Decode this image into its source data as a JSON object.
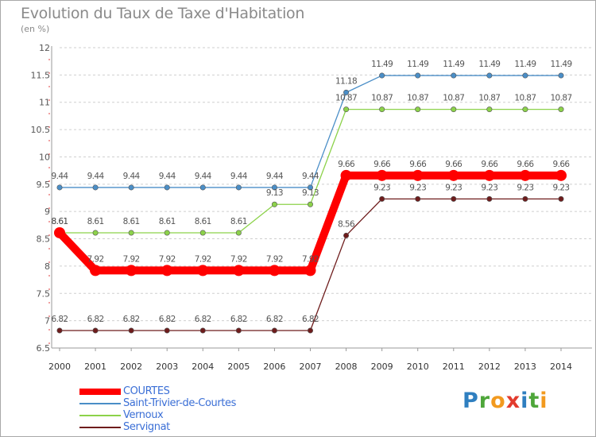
{
  "title": "Evolution du Taux de Taxe d'Habitation",
  "unit_label": "(en %)",
  "logo": {
    "letters": [
      {
        "ch": "P",
        "color": "#2f7fc0"
      },
      {
        "ch": "r",
        "color": "#4ea63a"
      },
      {
        "ch": "o",
        "color": "#f29a1f"
      },
      {
        "ch": "x",
        "color": "#e23b2e"
      },
      {
        "ch": "i",
        "color": "#2f7fc0"
      },
      {
        "ch": "t",
        "color": "#4ea63a"
      },
      {
        "ch": "i",
        "color": "#f29a1f"
      }
    ]
  },
  "chart_data": {
    "type": "line",
    "title": "Evolution du Taux de Taxe d'Habitation",
    "ylabel": "(en %)",
    "ylim": [
      6.5,
      12
    ],
    "yticks": [
      "6.5",
      "7",
      "7.5",
      "8",
      "8.5",
      "9",
      "9.5",
      "10",
      "10.5",
      "11",
      "11.5",
      "12"
    ],
    "grid": "horizontal dashed",
    "legend_position": "bottom-left",
    "x": [
      "2000",
      "2001",
      "2002",
      "2003",
      "2004",
      "2005",
      "2006",
      "2007",
      "2008",
      "2009",
      "2010",
      "2011",
      "2012",
      "2013",
      "2014"
    ],
    "series": [
      {
        "name": "COURTES",
        "color": "#ff0000",
        "values": [
          8.61,
          7.92,
          7.92,
          7.92,
          7.92,
          7.92,
          7.92,
          7.92,
          9.66,
          9.66,
          9.66,
          9.66,
          9.66,
          9.66,
          9.66
        ],
        "labels": [
          "8.61",
          "7.92",
          "7.92",
          "7.92",
          "7.92",
          "7.92",
          "7.92",
          "7.92",
          "9.66",
          "9.66",
          "9.66",
          "9.66",
          "9.66",
          "9.66",
          "9.66"
        ]
      },
      {
        "name": "Saint-Trivier-de-Courtes",
        "color": "#4a8ec7",
        "values": [
          9.44,
          9.44,
          9.44,
          9.44,
          9.44,
          9.44,
          9.44,
          9.44,
          11.18,
          11.49,
          11.49,
          11.49,
          11.49,
          11.49,
          11.49
        ],
        "labels": [
          "9.44",
          "9.44",
          "9.44",
          "9.44",
          "9.44",
          "9.44",
          "9.44",
          "9.44",
          "11.18",
          "11.49",
          "11.49",
          "11.49",
          "11.49",
          "11.49",
          "11.49"
        ]
      },
      {
        "name": "Vernoux",
        "color": "#8cd24a",
        "values": [
          8.61,
          8.61,
          8.61,
          8.61,
          8.61,
          8.61,
          9.13,
          9.13,
          10.87,
          10.87,
          10.87,
          10.87,
          10.87,
          10.87,
          10.87
        ],
        "labels": [
          "8.61",
          "8.61",
          "8.61",
          "8.61",
          "8.61",
          "8.61",
          "9.13",
          "9.13",
          "10.87",
          "10.87",
          "10.87",
          "10.87",
          "10.87",
          "10.87",
          "10.87"
        ]
      },
      {
        "name": "Servignat",
        "color": "#6e1c1c",
        "values": [
          6.82,
          6.82,
          6.82,
          6.82,
          6.82,
          6.82,
          6.82,
          6.82,
          8.56,
          9.23,
          9.23,
          9.23,
          9.23,
          9.23,
          9.23
        ],
        "labels": [
          "6.82",
          "6.82",
          "6.82",
          "6.82",
          "6.82",
          "6.82",
          "6.82",
          "6.82",
          "8.56",
          "9.23",
          "9.23",
          "9.23",
          "9.23",
          "9.23",
          "9.23"
        ]
      }
    ]
  }
}
